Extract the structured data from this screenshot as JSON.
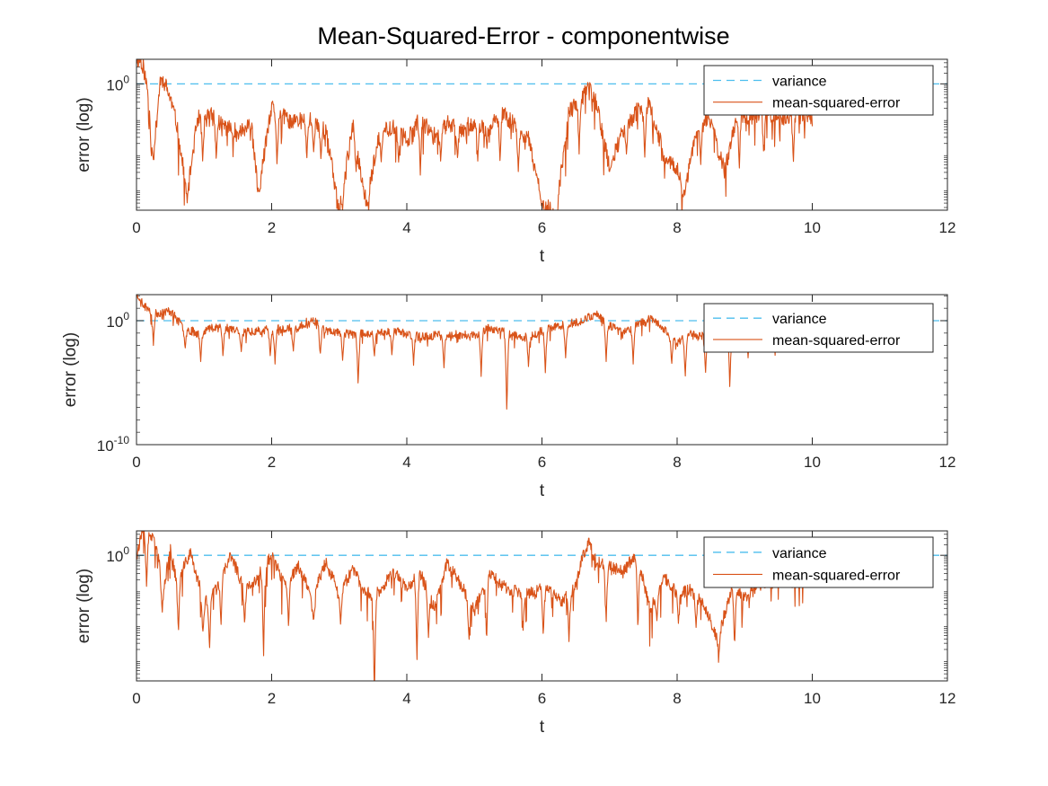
{
  "figure": {
    "title": "Mean-Squared-Error - componentwise"
  },
  "colors": {
    "variance": "#4DBEEE",
    "mse": "#D95319",
    "axis": "#262626",
    "minor_tick": "#404040"
  },
  "chart_data": [
    {
      "type": "line",
      "scale_y": "log",
      "xlabel": "t",
      "ylabel": "error (log)",
      "xlim": [
        0,
        12
      ],
      "x_ticks": [
        0,
        2,
        4,
        6,
        8,
        10,
        12
      ],
      "x_tick_labels": [
        "0",
        "2",
        "4",
        "6",
        "8",
        "10",
        "12"
      ],
      "ylim_log10": [
        -3.6,
        0.7
      ],
      "y_ticks_log10": [
        0
      ],
      "y_tick_labels": [
        {
          "base": "10",
          "exp": "0"
        }
      ],
      "legend": {
        "position": "top-right",
        "entries": [
          "variance",
          "mean-squared-error"
        ]
      },
      "series": [
        {
          "name": "variance",
          "style": "dashed",
          "x": [
            0,
            12
          ],
          "log10_y": [
            0,
            0
          ]
        },
        {
          "name": "mean-squared-error",
          "style": "solid",
          "x_range": [
            0,
            10
          ],
          "keypoints": [
            [
              0,
              0.7
            ],
            [
              0.05,
              0.7
            ],
            [
              0.1,
              0.5
            ],
            [
              0.2,
              -0.6
            ],
            [
              0.25,
              -2.1
            ],
            [
              0.35,
              0.1
            ],
            [
              0.4,
              0.1
            ],
            [
              0.5,
              -0.4
            ],
            [
              0.6,
              -1.2
            ],
            [
              0.75,
              -3.2
            ],
            [
              0.9,
              -1.0
            ],
            [
              1.1,
              -0.9
            ],
            [
              1.3,
              -1.2
            ],
            [
              1.5,
              -1.4
            ],
            [
              1.7,
              -1.2
            ],
            [
              1.8,
              -3.1
            ],
            [
              2.0,
              -0.7
            ],
            [
              2.3,
              -1.1
            ],
            [
              2.6,
              -1.0
            ],
            [
              2.8,
              -1.3
            ],
            [
              3.0,
              -3.6
            ],
            [
              3.2,
              -1.2
            ],
            [
              3.4,
              -3.4
            ],
            [
              3.6,
              -1.4
            ],
            [
              3.8,
              -1.2
            ],
            [
              4.0,
              -1.6
            ],
            [
              4.2,
              -1.0
            ],
            [
              4.4,
              -1.5
            ],
            [
              4.6,
              -1.1
            ],
            [
              4.8,
              -1.3
            ],
            [
              5.0,
              -1.1
            ],
            [
              5.2,
              -1.4
            ],
            [
              5.4,
              -0.8
            ],
            [
              5.6,
              -1.2
            ],
            [
              5.8,
              -1.6
            ],
            [
              6.0,
              -3.3
            ],
            [
              6.2,
              -3.8
            ],
            [
              6.4,
              -0.8
            ],
            [
              6.6,
              -0.4
            ],
            [
              6.7,
              -0.1
            ],
            [
              6.8,
              -0.5
            ],
            [
              7.0,
              -2.4
            ],
            [
              7.2,
              -1.3
            ],
            [
              7.4,
              -0.8
            ],
            [
              7.6,
              -0.6
            ],
            [
              7.8,
              -2.0
            ],
            [
              8.0,
              -2.4
            ],
            [
              8.1,
              -3.2
            ],
            [
              8.3,
              -1.2
            ],
            [
              8.5,
              -1.0
            ],
            [
              8.7,
              -2.5
            ],
            [
              8.9,
              -0.8
            ],
            [
              9.1,
              -1.0
            ],
            [
              9.3,
              -0.8
            ],
            [
              9.5,
              -1.0
            ],
            [
              9.8,
              -0.8
            ],
            [
              10.0,
              -1.0
            ]
          ],
          "dip_times": [
            0.22,
            0.75,
            0.98,
            1.18,
            1.82,
            2.08,
            2.52,
            2.62,
            2.73,
            3.05,
            3.25,
            3.42,
            3.62,
            3.88,
            4.2,
            4.5,
            4.75,
            5.05,
            5.38,
            5.65,
            5.98,
            6.22,
            6.55,
            7.02,
            7.25,
            7.52,
            7.82,
            8.08,
            8.35,
            8.62,
            8.92,
            9.28,
            9.72
          ],
          "dip_depths": [
            -2.1,
            -3.2,
            -2.3,
            -2.2,
            -3.1,
            -2.4,
            -2.2,
            -2.0,
            -2.2,
            -3.6,
            -2.5,
            -3.4,
            -2.3,
            -2.3,
            -2.6,
            -2.2,
            -2.1,
            -2.2,
            -2.3,
            -2.5,
            -3.3,
            -3.8,
            -2.0,
            -2.4,
            -2.0,
            -2.2,
            -2.3,
            -3.2,
            -2.3,
            -2.2,
            -2.5,
            -2.0,
            -2.3
          ],
          "noise_amp": 0.25,
          "seed": 11
        }
      ]
    },
    {
      "type": "line",
      "scale_y": "log",
      "xlabel": "t",
      "ylabel": "error (log)",
      "xlim": [
        0,
        12
      ],
      "x_ticks": [
        0,
        2,
        4,
        6,
        8,
        10,
        12
      ],
      "x_tick_labels": [
        "0",
        "2",
        "4",
        "6",
        "8",
        "10",
        "12"
      ],
      "ylim_log10": [
        -10,
        2.1
      ],
      "y_ticks_log10": [
        0,
        -10
      ],
      "y_tick_labels": [
        {
          "base": "10",
          "exp": "0"
        },
        {
          "base": "10",
          "exp": "-10"
        }
      ],
      "legend": {
        "position": "top-right",
        "entries": [
          "variance",
          "mean-squared-error"
        ]
      },
      "series": [
        {
          "name": "variance",
          "style": "dashed",
          "x": [
            0,
            12
          ],
          "log10_y": [
            0,
            0
          ]
        },
        {
          "name": "mean-squared-error",
          "style": "solid",
          "x_range": [
            0,
            10
          ],
          "keypoints": [
            [
              0,
              2.0
            ],
            [
              0.05,
              1.9
            ],
            [
              0.1,
              1.2
            ],
            [
              0.3,
              0.6
            ],
            [
              0.5,
              0.8
            ],
            [
              0.7,
              -0.6
            ],
            [
              0.9,
              -1.0
            ],
            [
              1.2,
              -0.4
            ],
            [
              1.6,
              -0.9
            ],
            [
              2.0,
              -0.7
            ],
            [
              2.4,
              -0.6
            ],
            [
              2.6,
              0.2
            ],
            [
              2.8,
              -0.8
            ],
            [
              3.2,
              -1.1
            ],
            [
              3.5,
              -1.0
            ],
            [
              3.8,
              -0.8
            ],
            [
              4.2,
              -1.3
            ],
            [
              4.6,
              -1.1
            ],
            [
              5.0,
              -1.2
            ],
            [
              5.2,
              -0.6
            ],
            [
              5.5,
              -1.0
            ],
            [
              5.8,
              -1.4
            ],
            [
              6.0,
              -0.8
            ],
            [
              6.3,
              -0.4
            ],
            [
              6.6,
              0.0
            ],
            [
              6.7,
              0.3
            ],
            [
              6.8,
              0.6
            ],
            [
              7.0,
              -0.4
            ],
            [
              7.2,
              -1.0
            ],
            [
              7.4,
              -0.3
            ],
            [
              7.6,
              0.2
            ],
            [
              7.8,
              -0.6
            ],
            [
              8.0,
              -1.8
            ],
            [
              8.2,
              -1.0
            ],
            [
              8.5,
              -1.4
            ],
            [
              8.7,
              -0.6
            ],
            [
              8.9,
              -1.0
            ],
            [
              9.1,
              -0.7
            ],
            [
              9.5,
              -1.0
            ],
            [
              9.8,
              -0.6
            ],
            [
              10.0,
              -0.8
            ]
          ],
          "dip_times": [
            0.25,
            0.72,
            0.95,
            1.28,
            1.55,
            1.98,
            2.05,
            2.32,
            2.72,
            3.05,
            3.28,
            3.52,
            3.78,
            4.1,
            4.55,
            5.1,
            5.48,
            5.8,
            6.05,
            6.35,
            6.95,
            7.35,
            7.92,
            8.12,
            8.42,
            8.78,
            9.05,
            9.45
          ],
          "dip_depths": [
            -2.0,
            -2.3,
            -3.3,
            -3.0,
            -2.5,
            -3.0,
            -3.5,
            -2.6,
            -2.8,
            -3.2,
            -5.3,
            -3.0,
            -2.9,
            -3.6,
            -3.8,
            -4.5,
            -7.6,
            -3.7,
            -4.2,
            -3.0,
            -3.3,
            -3.5,
            -3.6,
            -4.7,
            -4.4,
            -5.6,
            -3.0,
            -2.8
          ],
          "noise_amp": 0.35,
          "seed": 23
        }
      ]
    },
    {
      "type": "line",
      "scale_y": "log",
      "xlabel": "t",
      "ylabel": "error (log)",
      "xlim": [
        0,
        12
      ],
      "x_ticks": [
        0,
        2,
        4,
        6,
        8,
        10,
        12
      ],
      "x_tick_labels": [
        "0",
        "2",
        "4",
        "6",
        "8",
        "10",
        "12"
      ],
      "ylim_log10": [
        -3.6,
        0.7
      ],
      "y_ticks_log10": [
        0
      ],
      "y_tick_labels": [
        {
          "base": "10",
          "exp": "0"
        }
      ],
      "legend": {
        "position": "top-right",
        "entries": [
          "variance",
          "mean-squared-error"
        ]
      },
      "series": [
        {
          "name": "variance",
          "style": "dashed",
          "x": [
            0,
            12
          ],
          "log10_y": [
            0,
            0
          ]
        },
        {
          "name": "mean-squared-error",
          "style": "solid",
          "x_range": [
            0,
            9.9
          ],
          "keypoints": [
            [
              0,
              0.0
            ],
            [
              0.05,
              0.4
            ],
            [
              0.1,
              0.7
            ],
            [
              0.2,
              0.6
            ],
            [
              0.3,
              0.2
            ],
            [
              0.4,
              -1.0
            ],
            [
              0.5,
              0.2
            ],
            [
              0.6,
              -0.8
            ],
            [
              0.8,
              0.1
            ],
            [
              1.0,
              -1.4
            ],
            [
              1.2,
              -0.9
            ],
            [
              1.4,
              0.0
            ],
            [
              1.6,
              -1.0
            ],
            [
              1.8,
              -0.6
            ],
            [
              2.0,
              0.0
            ],
            [
              2.2,
              -0.9
            ],
            [
              2.4,
              -0.3
            ],
            [
              2.6,
              -1.2
            ],
            [
              2.8,
              -0.2
            ],
            [
              3.0,
              -1.1
            ],
            [
              3.2,
              -0.4
            ],
            [
              3.4,
              -1.1
            ],
            [
              3.6,
              -1.0
            ],
            [
              3.8,
              -0.5
            ],
            [
              4.0,
              -0.9
            ],
            [
              4.2,
              -0.5
            ],
            [
              4.4,
              -1.5
            ],
            [
              4.6,
              -0.2
            ],
            [
              4.8,
              -0.8
            ],
            [
              5.0,
              -1.6
            ],
            [
              5.2,
              -0.5
            ],
            [
              5.5,
              -1.0
            ],
            [
              5.8,
              -1.1
            ],
            [
              6.0,
              -0.9
            ],
            [
              6.3,
              -1.3
            ],
            [
              6.5,
              -0.9
            ],
            [
              6.6,
              0.0
            ],
            [
              6.7,
              0.4
            ],
            [
              6.8,
              -0.2
            ],
            [
              7.0,
              -0.3
            ],
            [
              7.2,
              -0.5
            ],
            [
              7.4,
              0.1
            ],
            [
              7.6,
              -1.6
            ],
            [
              7.8,
              -0.6
            ],
            [
              8.0,
              -1.1
            ],
            [
              8.2,
              -1.0
            ],
            [
              8.4,
              -1.4
            ],
            [
              8.6,
              -2.4
            ],
            [
              8.8,
              -1.0
            ],
            [
              9.0,
              -1.2
            ],
            [
              9.3,
              -0.8
            ],
            [
              9.6,
              -0.6
            ],
            [
              9.9,
              -0.7
            ]
          ],
          "dip_times": [
            0.15,
            0.38,
            0.62,
            0.98,
            1.08,
            1.25,
            1.6,
            1.88,
            2.25,
            2.62,
            3.02,
            3.52,
            4.15,
            4.32,
            4.92,
            5.18,
            5.72,
            6.02,
            6.4,
            6.95,
            7.42,
            7.7,
            8.02,
            8.28,
            8.62,
            8.85
          ],
          "dip_depths": [
            -1.0,
            -1.7,
            -2.3,
            -2.3,
            -2.8,
            -2.1,
            -2.0,
            -3.0,
            -2.1,
            -2.0,
            -2.0,
            -4.2,
            -3.1,
            -2.4,
            -2.5,
            -2.6,
            -2.2,
            -2.4,
            -2.5,
            -2.0,
            -2.2,
            -1.9,
            -2.0,
            -2.1,
            -2.8,
            -2.7
          ],
          "noise_amp": 0.18,
          "seed": 37
        }
      ]
    }
  ]
}
